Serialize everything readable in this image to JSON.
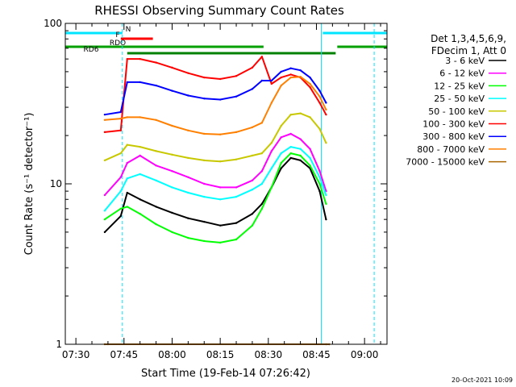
{
  "chart_data": {
    "type": "line",
    "title": "RHESSI Observing Summary Count Rates",
    "xlabel": "Start Time (19-Feb-14 07:26:42)",
    "ylabel": "Count Rate (s⁻¹ detector⁻¹)",
    "y_scale": "log",
    "ylim": [
      1,
      100
    ],
    "xlim": [
      "07:26:42",
      "09:07:00"
    ],
    "x_ticks": [
      "07:30",
      "07:45",
      "08:00",
      "08:15",
      "08:30",
      "08:45",
      "09:00"
    ],
    "y_ticks": [
      "1",
      "10",
      "100"
    ],
    "footer_date": "20-Oct-2021 10:09",
    "legend": {
      "header": [
        "Det 1,3,4,5,6,9,",
        "FDecim 1, Att 0"
      ],
      "placement": "right"
    },
    "series": [
      {
        "name": "3 - 6 keV",
        "color": "#000000",
        "x": [
          "07:39",
          "07:44",
          "07:46",
          "07:50",
          "07:55",
          "08:00",
          "08:05",
          "08:10",
          "08:15",
          "08:20",
          "08:25",
          "08:28",
          "08:31",
          "08:34",
          "08:37",
          "08:40",
          "08:43",
          "08:46",
          "08:48"
        ],
        "y": [
          5.0,
          6.3,
          8.8,
          8.0,
          7.2,
          6.6,
          6.1,
          5.8,
          5.5,
          5.7,
          6.5,
          7.5,
          9.5,
          12.5,
          14.5,
          14.0,
          12.5,
          9.0,
          6.0
        ]
      },
      {
        "name": "6 - 12 keV",
        "color": "#ff00ff",
        "x": [
          "07:39",
          "07:44",
          "07:46",
          "07:50",
          "07:55",
          "08:00",
          "08:05",
          "08:10",
          "08:15",
          "08:20",
          "08:25",
          "08:28",
          "08:31",
          "08:34",
          "08:37",
          "08:40",
          "08:43",
          "08:46",
          "08:48"
        ],
        "y": [
          8.5,
          11.0,
          13.5,
          15.0,
          13.0,
          12.0,
          11.0,
          10.0,
          9.5,
          9.5,
          10.5,
          12.0,
          16.0,
          19.5,
          20.5,
          19.0,
          16.5,
          12.0,
          9.0
        ]
      },
      {
        "name": "12 - 25 keV",
        "color": "#00ff00",
        "x": [
          "07:39",
          "07:44",
          "07:46",
          "07:50",
          "07:55",
          "08:00",
          "08:05",
          "08:10",
          "08:15",
          "08:20",
          "08:25",
          "08:28",
          "08:31",
          "08:34",
          "08:37",
          "08:40",
          "08:43",
          "08:46",
          "08:48"
        ],
        "y": [
          6.0,
          7.0,
          7.2,
          6.5,
          5.6,
          5.0,
          4.6,
          4.4,
          4.3,
          4.5,
          5.5,
          7.0,
          9.5,
          13.5,
          15.5,
          15.0,
          13.0,
          10.0,
          7.5
        ]
      },
      {
        "name": "25 - 50 keV",
        "color": "#00ffff",
        "x": [
          "07:39",
          "07:44",
          "07:46",
          "07:50",
          "07:55",
          "08:00",
          "08:05",
          "08:10",
          "08:15",
          "08:20",
          "08:25",
          "08:28",
          "08:31",
          "08:34",
          "08:37",
          "08:40",
          "08:43",
          "08:46",
          "08:48"
        ],
        "y": [
          6.8,
          9.0,
          10.8,
          11.5,
          10.5,
          9.5,
          8.8,
          8.3,
          8.0,
          8.3,
          9.2,
          10.0,
          12.5,
          15.5,
          17.0,
          16.5,
          14.5,
          11.0,
          8.5
        ]
      },
      {
        "name": "50 - 100 keV",
        "color": "#c8c800",
        "x": [
          "07:39",
          "07:44",
          "07:46",
          "07:50",
          "07:55",
          "08:00",
          "08:05",
          "08:10",
          "08:15",
          "08:20",
          "08:25",
          "08:28",
          "08:31",
          "08:34",
          "08:37",
          "08:40",
          "08:43",
          "08:46",
          "08:48"
        ],
        "y": [
          14.0,
          15.5,
          17.5,
          17.0,
          16.0,
          15.2,
          14.5,
          14.0,
          13.8,
          14.2,
          15.0,
          15.5,
          18.0,
          23.0,
          27.0,
          27.5,
          26.0,
          22.0,
          18.0
        ]
      },
      {
        "name": "100 - 300 keV",
        "color": "#ff0000",
        "x": [
          "07:39",
          "07:44",
          "07:46",
          "07:50",
          "07:55",
          "08:00",
          "08:05",
          "08:10",
          "08:15",
          "08:20",
          "08:25",
          "08:28",
          "08:31",
          "08:34",
          "08:37",
          "08:40",
          "08:43",
          "08:46",
          "08:48"
        ],
        "y": [
          21.0,
          21.5,
          60.0,
          60.0,
          57.0,
          53.0,
          49.0,
          46.0,
          45.0,
          47.0,
          53.0,
          62.0,
          42.0,
          46.0,
          48.0,
          46.0,
          40.0,
          32.0,
          27.0
        ]
      },
      {
        "name": "300 - 800 keV",
        "color": "#0000ff",
        "x": [
          "07:39",
          "07:44",
          "07:46",
          "07:50",
          "07:55",
          "08:00",
          "08:05",
          "08:10",
          "08:15",
          "08:20",
          "08:25",
          "08:28",
          "08:31",
          "08:34",
          "08:37",
          "08:40",
          "08:43",
          "08:46",
          "08:48"
        ],
        "y": [
          27.0,
          28.0,
          43.0,
          43.0,
          41.0,
          38.0,
          35.5,
          34.0,
          33.5,
          35.0,
          39.0,
          44.0,
          44.0,
          50.0,
          52.5,
          51.0,
          46.0,
          38.0,
          32.0
        ]
      },
      {
        "name": "800 - 7000 keV",
        "color": "#ff8000",
        "x": [
          "07:39",
          "07:44",
          "07:46",
          "07:50",
          "07:55",
          "08:00",
          "08:05",
          "08:10",
          "08:15",
          "08:20",
          "08:25",
          "08:28",
          "08:31",
          "08:34",
          "08:37",
          "08:40",
          "08:43",
          "08:46",
          "08:48"
        ],
        "y": [
          25.0,
          25.5,
          26.0,
          26.0,
          25.0,
          23.0,
          21.5,
          20.5,
          20.3,
          21.0,
          22.5,
          24.0,
          32.0,
          41.0,
          46.0,
          46.5,
          42.0,
          35.0,
          29.0
        ]
      },
      {
        "name": "7000 - 15000 keV",
        "color": "#aa6600",
        "x": [
          "07:39",
          "07:40",
          "08:48",
          "08:49"
        ],
        "y": [
          1.0,
          1.0,
          1.0,
          1.0
        ]
      }
    ],
    "flags": [
      {
        "label": "N",
        "color": "#00e5ff",
        "segments": [
          [
            "07:26:42",
            "07:44:30"
          ],
          [
            "08:47:00",
            "09:07:00"
          ]
        ]
      },
      {
        "label": "F",
        "color": "#ff0000",
        "segments": [
          [
            "07:44:00",
            "07:54:00"
          ]
        ]
      },
      {
        "label": "RDO",
        "color": "#00a000",
        "segments": [
          [
            "07:26:42",
            "08:28:30"
          ],
          [
            "08:51:30",
            "09:07:00"
          ]
        ]
      },
      {
        "label": "RD6",
        "color": "#008000",
        "segments": [
          [
            "07:46:00",
            "08:51:00"
          ]
        ]
      }
    ],
    "grid": false
  }
}
